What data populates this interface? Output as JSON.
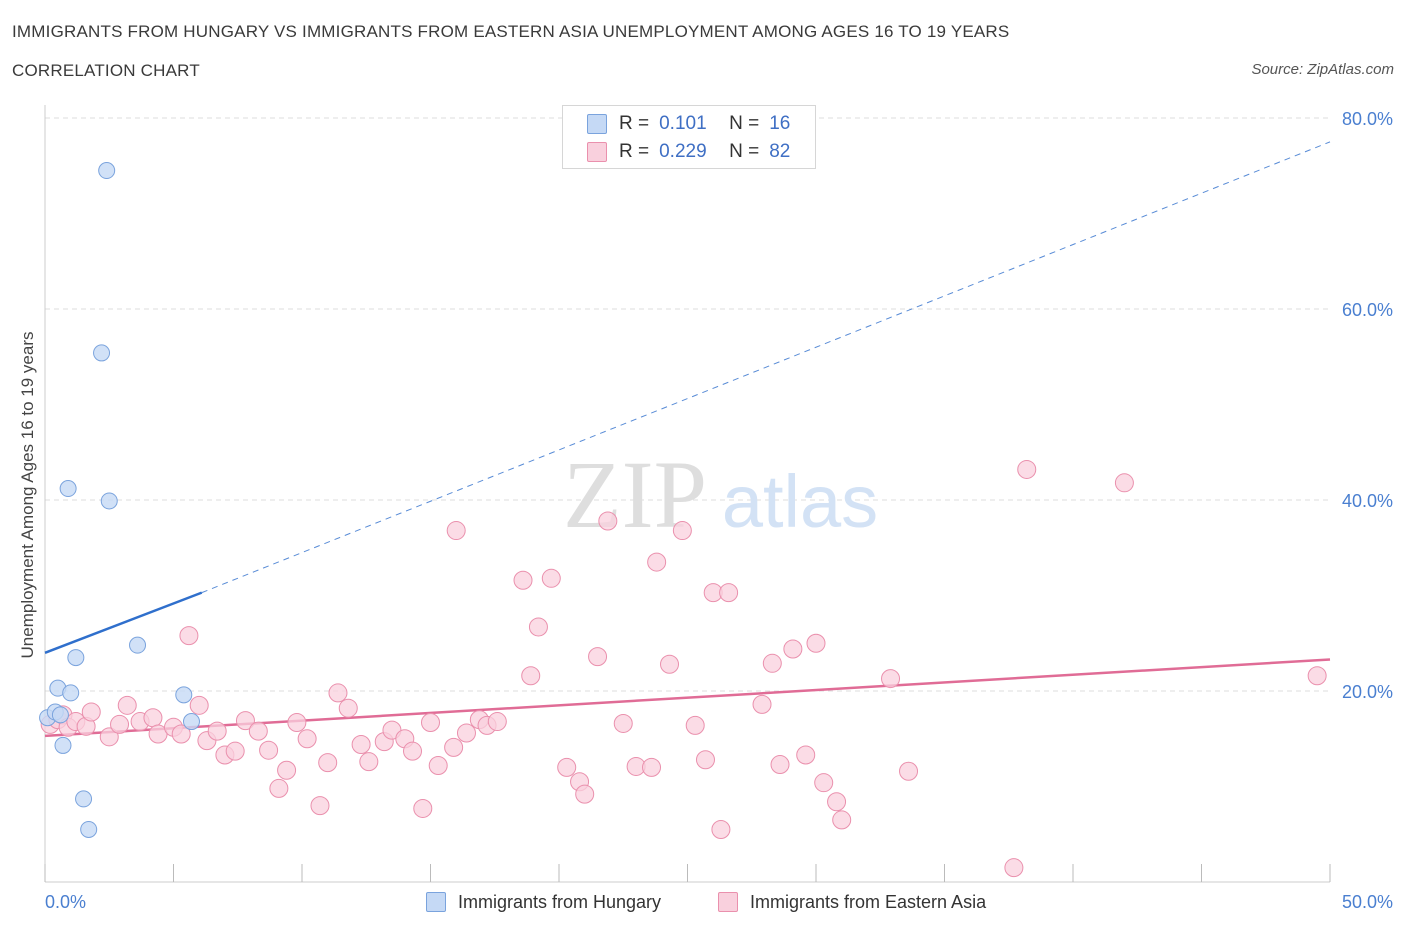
{
  "header": {
    "title": "IMMIGRANTS FROM HUNGARY VS IMMIGRANTS FROM EASTERN ASIA UNEMPLOYMENT AMONG AGES 16 TO 19 YEARS",
    "subtitle": "CORRELATION CHART",
    "source": "Source: ZipAtlas.com"
  },
  "watermark": {
    "zip": "ZIP",
    "atlas": "atlas"
  },
  "legend": {
    "r_label": "R =",
    "n_label": "N =",
    "entries": [
      {
        "r": "0.101",
        "n": "16",
        "color": "#a9c8f0"
      },
      {
        "r": "0.229",
        "n": "82",
        "color": "#f5b8cb"
      }
    ]
  },
  "colors": {
    "blue_fill": "#c5d9f5",
    "blue_stroke": "#7aa3dd",
    "blue_line": "#2f6fcc",
    "pink_fill": "#f9d0dd",
    "pink_stroke": "#ea90ad",
    "pink_line": "#e06c96",
    "tick_text": "#4a7fd0",
    "grid": "#dddddd"
  },
  "chart_data": {
    "type": "scatter",
    "title": "IMMIGRANTS FROM HUNGARY VS IMMIGRANTS FROM EASTERN ASIA UNEMPLOYMENT AMONG AGES 16 TO 19 YEARS",
    "xlabel": "",
    "ylabel": "Unemployment Among Ages 16 to 19 years",
    "xlim": [
      0,
      50
    ],
    "ylim": [
      0,
      80
    ],
    "x_tick_labels": [
      "0.0%",
      "50.0%"
    ],
    "y_ticks": [
      20,
      40,
      60,
      80
    ],
    "y_tick_labels": [
      "20.0%",
      "40.0%",
      "60.0%",
      "80.0%"
    ],
    "grid": true,
    "series": [
      {
        "name": "Immigrants from Hungary",
        "points": [
          [
            0.1,
            17.2
          ],
          [
            0.4,
            17.8
          ],
          [
            0.5,
            20.3
          ],
          [
            0.6,
            17.5
          ],
          [
            0.7,
            14.3
          ],
          [
            0.9,
            41.2
          ],
          [
            1.0,
            19.8
          ],
          [
            1.2,
            23.5
          ],
          [
            1.5,
            8.7
          ],
          [
            1.7,
            5.5
          ],
          [
            2.2,
            55.4
          ],
          [
            2.4,
            74.5
          ],
          [
            2.5,
            39.9
          ],
          [
            3.6,
            24.8
          ],
          [
            5.4,
            19.6
          ],
          [
            5.7,
            16.8
          ]
        ],
        "trend": {
          "x": [
            0,
            6.1
          ],
          "y": [
            24.0,
            30.3
          ]
        },
        "trend_extension": {
          "x": [
            6.1,
            50
          ],
          "y": [
            30.3,
            77.5
          ]
        }
      },
      {
        "name": "Immigrants from Eastern Asia",
        "points": [
          [
            0.2,
            16.5
          ],
          [
            0.5,
            17.0
          ],
          [
            0.7,
            17.5
          ],
          [
            0.9,
            16.2
          ],
          [
            1.2,
            16.8
          ],
          [
            1.6,
            16.3
          ],
          [
            1.8,
            17.8
          ],
          [
            2.5,
            15.2
          ],
          [
            2.9,
            16.5
          ],
          [
            3.2,
            18.5
          ],
          [
            3.7,
            16.8
          ],
          [
            4.2,
            17.2
          ],
          [
            4.4,
            15.5
          ],
          [
            5.0,
            16.2
          ],
          [
            5.3,
            15.5
          ],
          [
            5.6,
            25.8
          ],
          [
            6.0,
            18.5
          ],
          [
            6.3,
            14.8
          ],
          [
            6.7,
            15.8
          ],
          [
            7.0,
            13.3
          ],
          [
            7.4,
            13.7
          ],
          [
            7.8,
            16.9
          ],
          [
            8.3,
            15.8
          ],
          [
            8.7,
            13.8
          ],
          [
            9.1,
            9.8
          ],
          [
            9.4,
            11.7
          ],
          [
            9.8,
            16.7
          ],
          [
            10.2,
            15.0
          ],
          [
            10.7,
            8.0
          ],
          [
            11.0,
            12.5
          ],
          [
            11.4,
            19.8
          ],
          [
            11.8,
            18.2
          ],
          [
            12.3,
            14.4
          ],
          [
            12.6,
            12.6
          ],
          [
            13.2,
            14.7
          ],
          [
            13.5,
            15.9
          ],
          [
            14.0,
            15.0
          ],
          [
            14.3,
            13.7
          ],
          [
            14.7,
            7.7
          ],
          [
            15.0,
            16.7
          ],
          [
            15.3,
            12.2
          ],
          [
            15.9,
            14.1
          ],
          [
            16.0,
            36.8
          ],
          [
            16.4,
            15.6
          ],
          [
            16.9,
            17.0
          ],
          [
            17.2,
            16.4
          ],
          [
            17.6,
            16.8
          ],
          [
            18.6,
            31.6
          ],
          [
            18.9,
            21.6
          ],
          [
            19.2,
            26.7
          ],
          [
            19.7,
            31.8
          ],
          [
            20.3,
            12.0
          ],
          [
            20.8,
            10.5
          ],
          [
            21.0,
            9.2
          ],
          [
            21.5,
            23.6
          ],
          [
            21.9,
            37.8
          ],
          [
            22.5,
            16.6
          ],
          [
            23.0,
            12.1
          ],
          [
            23.6,
            12.0
          ],
          [
            23.8,
            33.5
          ],
          [
            24.3,
            22.8
          ],
          [
            24.8,
            36.8
          ],
          [
            25.3,
            16.4
          ],
          [
            25.7,
            12.8
          ],
          [
            26.0,
            30.3
          ],
          [
            26.3,
            5.5
          ],
          [
            26.6,
            30.3
          ],
          [
            27.9,
            18.6
          ],
          [
            28.3,
            22.9
          ],
          [
            28.6,
            12.3
          ],
          [
            29.1,
            24.4
          ],
          [
            29.6,
            13.3
          ],
          [
            30.0,
            25.0
          ],
          [
            30.3,
            10.4
          ],
          [
            30.8,
            8.4
          ],
          [
            31.0,
            6.5
          ],
          [
            32.9,
            21.3
          ],
          [
            33.6,
            11.6
          ],
          [
            37.7,
            1.5
          ],
          [
            38.2,
            43.2
          ],
          [
            42.0,
            41.8
          ],
          [
            49.5,
            21.6
          ]
        ],
        "trend": {
          "x": [
            0,
            50
          ],
          "y": [
            15.3,
            23.3
          ]
        }
      }
    ]
  }
}
